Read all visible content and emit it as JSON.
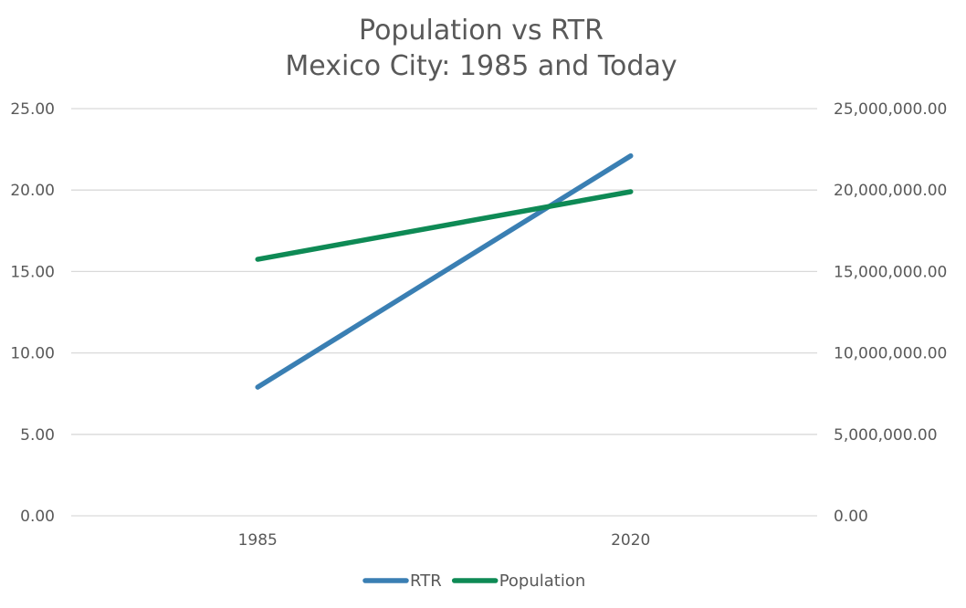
{
  "chart_data": {
    "type": "line",
    "title": "Population vs RTR",
    "subtitle": "Mexico City: 1985 and Today",
    "categories": [
      "1985",
      "2020"
    ],
    "series": [
      {
        "name": "RTR",
        "axis": "left",
        "color": "#3a7fb3",
        "values": [
          7.9,
          22.1
        ]
      },
      {
        "name": "Population",
        "axis": "right",
        "color": "#0e8a55",
        "values": [
          15750000,
          19900000
        ]
      }
    ],
    "y_left": {
      "ylim": [
        0,
        25
      ],
      "ticks": [
        "0.00",
        "5.00",
        "10.00",
        "15.00",
        "20.00",
        "25.00"
      ]
    },
    "y_right": {
      "ylim": [
        0,
        25000000
      ],
      "ticks": [
        "0.00",
        "5,000,000.00",
        "10,000,000.00",
        "15,000,000.00",
        "20,000,000.00",
        "25,000,000.00"
      ]
    },
    "grid": true,
    "legend": "bottom"
  }
}
